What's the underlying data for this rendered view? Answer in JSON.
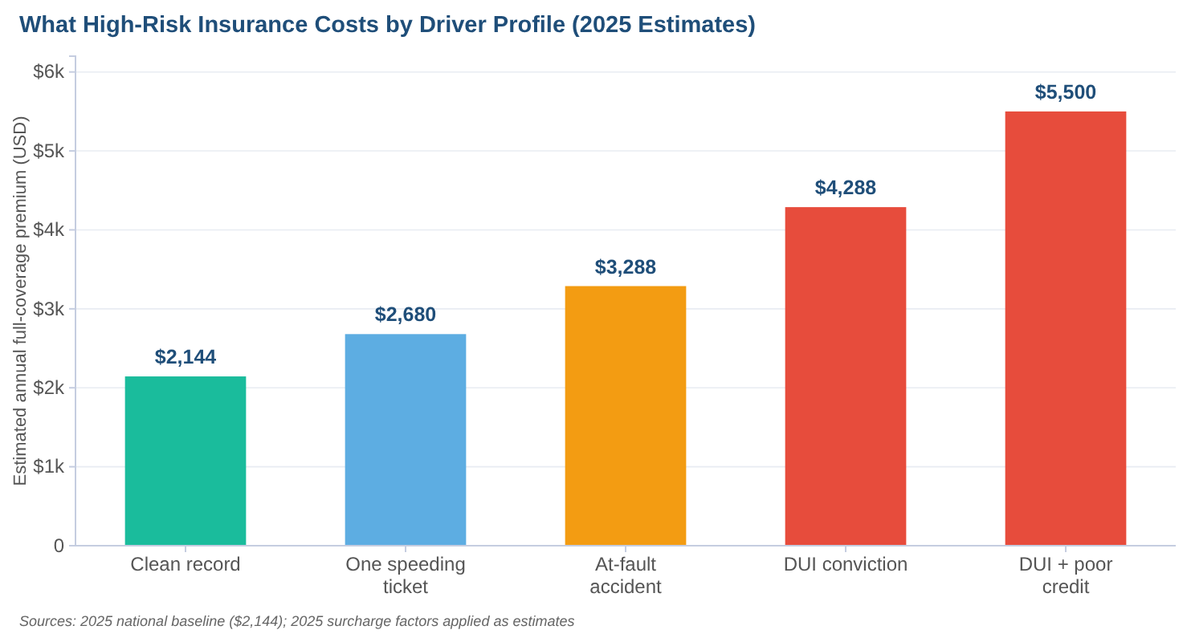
{
  "chart_data": {
    "type": "bar",
    "title": "What High-Risk Insurance Costs by Driver Profile (2025 Estimates)",
    "ylabel": "Estimated annual full-coverage premium (USD)",
    "categories": [
      "Clean record",
      "One speeding ticket",
      "At-fault accident",
      "DUI conviction",
      "DUI + poor credit"
    ],
    "values": [
      2144,
      2680,
      3288,
      4288,
      5500
    ],
    "colors": [
      "#1abc9c",
      "#5dade2",
      "#f39c12",
      "#e74c3c",
      "#e74c3c"
    ],
    "value_labels": [
      "$2,144",
      "$2,680",
      "$3,288",
      "$4,288",
      "$5,500"
    ],
    "ylim": [
      0,
      6200
    ],
    "yticks": [
      0,
      {
        "value": 1000,
        "label": "$1k"
      },
      {
        "value": 2000,
        "label": "$2k"
      },
      {
        "value": 3000,
        "label": "$3k"
      },
      {
        "value": 4000,
        "label": "$4k"
      },
      {
        "value": 5000,
        "label": "$5k"
      },
      {
        "value": 6000,
        "label": "$6k"
      }
    ],
    "grid": "y",
    "annotations": [
      "Sources: 2025 national baseline ($2,144); 2025 surcharge factors applied as estimates"
    ]
  }
}
